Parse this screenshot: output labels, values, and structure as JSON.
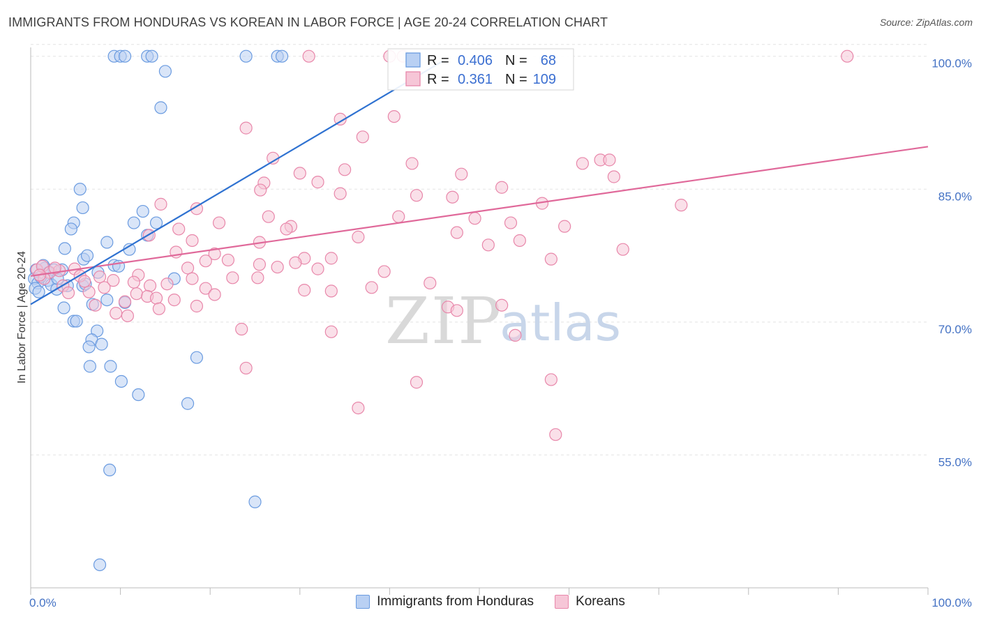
{
  "header": {
    "title": "IMMIGRANTS FROM HONDURAS VS KOREAN IN LABOR FORCE | AGE 20-24 CORRELATION CHART",
    "source": "Source: ZipAtlas.com"
  },
  "colors": {
    "blue": "#6a9be0",
    "blue_fill": "#b9d0f3",
    "blue_line": "#2f72d1",
    "pink": "#e887aa",
    "pink_fill": "#f6c6d7",
    "pink_line": "#e0699a",
    "axis_label": "#4472c4"
  },
  "legend": {
    "r_label": "R =",
    "n_label": "N =",
    "rows": [
      {
        "series": "Immigrants from Honduras",
        "r": "0.406",
        "n": "68"
      },
      {
        "series": "Koreans",
        "r": "0.361",
        "n": "109"
      }
    ]
  },
  "bottom_legend": [
    "Immigrants from Honduras",
    "Koreans"
  ],
  "watermark": {
    "zip": "ZIP",
    "atlas": "atlas"
  },
  "chart_data": {
    "type": "scatter",
    "title": "IMMIGRANTS FROM HONDURAS VS KOREAN IN LABOR FORCE | AGE 20-24 CORRELATION CHART",
    "xlabel": "",
    "ylabel": "In Labor Force | Age 20-24",
    "xlim": [
      0,
      100
    ],
    "ylim": [
      40,
      101
    ],
    "x_tick_labels": [
      "0.0%",
      "100.0%"
    ],
    "y_ticks": [
      55,
      70,
      85,
      100
    ],
    "y_tick_labels": [
      "55.0%",
      "70.0%",
      "85.0%",
      "100.0%"
    ],
    "grid": true,
    "series": [
      {
        "name": "Immigrants from Honduras",
        "r": 0.406,
        "n": 68,
        "trend": {
          "x": [
            0,
            46
          ],
          "y": [
            72.0,
            99.5
          ]
        },
        "points": [
          [
            9.3,
            100
          ],
          [
            10,
            100
          ],
          [
            10.5,
            100
          ],
          [
            13,
            100
          ],
          [
            13.5,
            100
          ],
          [
            24,
            100
          ],
          [
            27.5,
            100
          ],
          [
            28,
            100
          ],
          [
            15,
            98.3
          ],
          [
            14.5,
            94.2
          ],
          [
            5.5,
            85
          ],
          [
            5.8,
            82.9
          ],
          [
            4.8,
            81.2
          ],
          [
            4.5,
            80.5
          ],
          [
            12.5,
            82.5
          ],
          [
            11.5,
            81.2
          ],
          [
            14,
            81.2
          ],
          [
            13,
            79.8
          ],
          [
            8.5,
            79
          ],
          [
            11,
            78.2
          ],
          [
            3.8,
            78.3
          ],
          [
            5.9,
            77.1
          ],
          [
            9.3,
            76.4
          ],
          [
            1.6,
            76.1
          ],
          [
            3.5,
            75.9
          ],
          [
            2.6,
            75.9
          ],
          [
            0.6,
            75.9
          ],
          [
            0.4,
            74.9
          ],
          [
            1.9,
            74.7
          ],
          [
            2.3,
            74.2
          ],
          [
            0.8,
            74.4
          ],
          [
            4.1,
            74.1
          ],
          [
            5.8,
            74.1
          ],
          [
            6.1,
            74.3
          ],
          [
            2.9,
            73.7
          ],
          [
            7.5,
            75.6
          ],
          [
            16,
            74.9
          ],
          [
            8.5,
            72.5
          ],
          [
            10.5,
            72.2
          ],
          [
            6.9,
            72
          ],
          [
            3.7,
            71.6
          ],
          [
            4.8,
            70.1
          ],
          [
            5.1,
            70.1
          ],
          [
            7.4,
            69
          ],
          [
            6.8,
            68
          ],
          [
            7.9,
            67.5
          ],
          [
            6.5,
            67.2
          ],
          [
            18.5,
            66
          ],
          [
            6.6,
            65
          ],
          [
            8.9,
            65
          ],
          [
            10.1,
            63.3
          ],
          [
            12,
            61.8
          ],
          [
            17.5,
            60.8
          ],
          [
            8.8,
            53.3
          ],
          [
            25,
            49.7
          ],
          [
            7.7,
            42.6
          ],
          [
            0.5,
            73.8
          ],
          [
            1.1,
            75.1
          ],
          [
            2.0,
            75.6
          ],
          [
            1.4,
            76.4
          ],
          [
            3.0,
            74.9
          ],
          [
            9.8,
            76.3
          ],
          [
            6.3,
            77.5
          ],
          [
            0.9,
            73.4
          ]
        ]
      },
      {
        "name": "Koreans",
        "r": 0.361,
        "n": 109,
        "trend": {
          "x": [
            0,
            100
          ],
          "y": [
            75.2,
            89.8
          ]
        },
        "points": [
          [
            31,
            100
          ],
          [
            40,
            100
          ],
          [
            41.5,
            100
          ],
          [
            91,
            100
          ],
          [
            40.5,
            93.2
          ],
          [
            34.5,
            92.9
          ],
          [
            24,
            91.9
          ],
          [
            37,
            90.9
          ],
          [
            27,
            88.5
          ],
          [
            42.5,
            87.9
          ],
          [
            61.5,
            87.9
          ],
          [
            63.5,
            88.3
          ],
          [
            64.5,
            88.3
          ],
          [
            35,
            87.2
          ],
          [
            30,
            86.8
          ],
          [
            48,
            86.7
          ],
          [
            65,
            86.4
          ],
          [
            32,
            85.8
          ],
          [
            26,
            85.7
          ],
          [
            25.6,
            84.9
          ],
          [
            52.5,
            85.2
          ],
          [
            34.5,
            84.5
          ],
          [
            43,
            84.3
          ],
          [
            47,
            84.1
          ],
          [
            57,
            83.4
          ],
          [
            72.5,
            83.2
          ],
          [
            14.5,
            83.3
          ],
          [
            18.5,
            82.8
          ],
          [
            26.5,
            81.9
          ],
          [
            41,
            81.9
          ],
          [
            49.5,
            81.7
          ],
          [
            53.5,
            81.2
          ],
          [
            59.5,
            80.8
          ],
          [
            21,
            81.2
          ],
          [
            29,
            80.8
          ],
          [
            28.5,
            80.5
          ],
          [
            16.5,
            80.5
          ],
          [
            47.5,
            80.1
          ],
          [
            13.2,
            79.8
          ],
          [
            54.5,
            79.2
          ],
          [
            18,
            79.2
          ],
          [
            36.5,
            79.6
          ],
          [
            25.5,
            79
          ],
          [
            51,
            78.7
          ],
          [
            66,
            78.2
          ],
          [
            20.5,
            77.7
          ],
          [
            30.5,
            77.2
          ],
          [
            33.5,
            77.2
          ],
          [
            58,
            77.1
          ],
          [
            16.2,
            77.9
          ],
          [
            19.5,
            76.9
          ],
          [
            22,
            77
          ],
          [
            29.5,
            76.7
          ],
          [
            25.5,
            76.5
          ],
          [
            27.5,
            76.2
          ],
          [
            32,
            76
          ],
          [
            17.5,
            76.1
          ],
          [
            4.9,
            76
          ],
          [
            0.7,
            75.9
          ],
          [
            1.3,
            76.3
          ],
          [
            2.1,
            75.6
          ],
          [
            3.2,
            75.8
          ],
          [
            12,
            75.3
          ],
          [
            22.5,
            75
          ],
          [
            25.3,
            75
          ],
          [
            18,
            74.9
          ],
          [
            1.5,
            74.9
          ],
          [
            5.5,
            75.2
          ],
          [
            7.7,
            75.1
          ],
          [
            9.2,
            74.7
          ],
          [
            11.5,
            74.5
          ],
          [
            13.3,
            74.1
          ],
          [
            3.6,
            74.1
          ],
          [
            8.2,
            73.9
          ],
          [
            19.5,
            73.8
          ],
          [
            20.5,
            73.1
          ],
          [
            30.5,
            73.6
          ],
          [
            33.5,
            73.5
          ],
          [
            38,
            73.9
          ],
          [
            44.5,
            74.4
          ],
          [
            6.5,
            73.4
          ],
          [
            4.2,
            73.3
          ],
          [
            11.8,
            73.2
          ],
          [
            13,
            72.9
          ],
          [
            14,
            72.7
          ],
          [
            16,
            72.5
          ],
          [
            10.5,
            72.3
          ],
          [
            7.2,
            71.9
          ],
          [
            14.3,
            71.5
          ],
          [
            18.5,
            71.8
          ],
          [
            9.5,
            71
          ],
          [
            10.8,
            70.7
          ],
          [
            46.5,
            71.7
          ],
          [
            47.5,
            71.3
          ],
          [
            52.5,
            71.9
          ],
          [
            23.5,
            69.2
          ],
          [
            33.5,
            68.9
          ],
          [
            54,
            68.5
          ],
          [
            24,
            64.8
          ],
          [
            43,
            63.2
          ],
          [
            58,
            63.5
          ],
          [
            36.5,
            60.3
          ],
          [
            58.5,
            57.3
          ],
          [
            1.0,
            75.3
          ],
          [
            2.7,
            76.1
          ],
          [
            6.0,
            74.6
          ],
          [
            15.2,
            74.3
          ],
          [
            39.4,
            75.7
          ]
        ]
      }
    ]
  }
}
